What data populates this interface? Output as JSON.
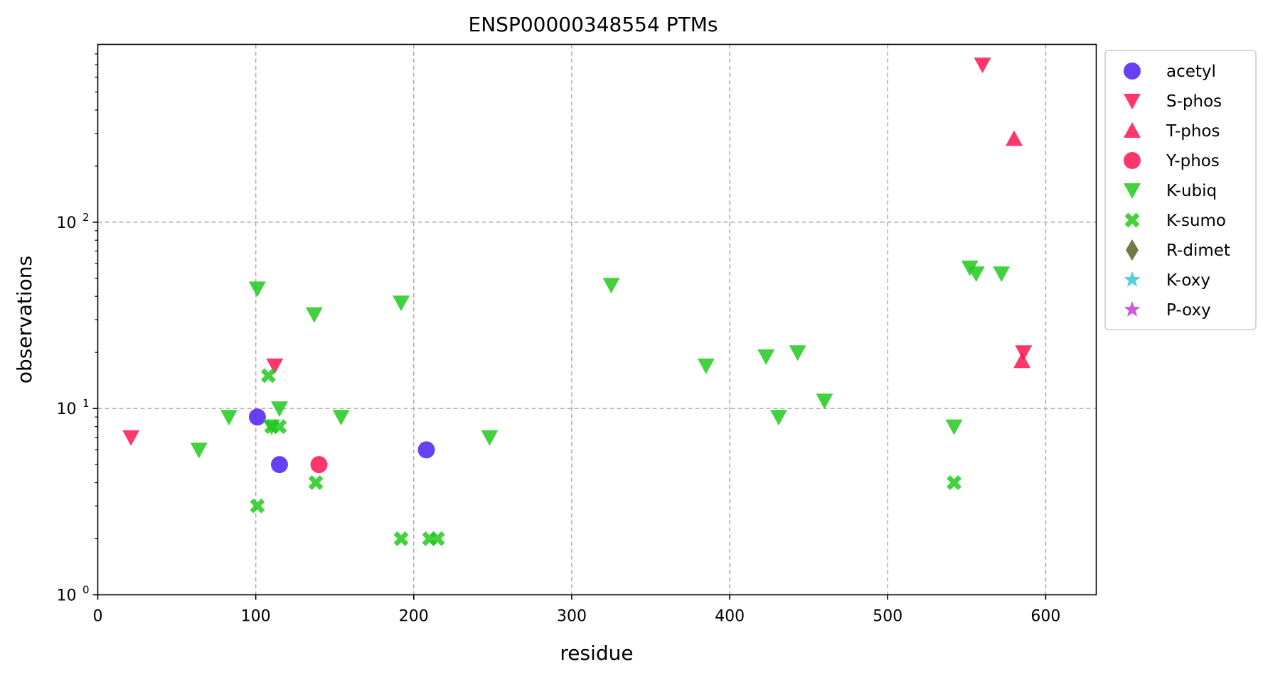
{
  "chart_data": {
    "type": "scatter",
    "title": "ENSP00000348554 PTMs",
    "xlabel": "residue",
    "ylabel": "observations",
    "xlim": [
      0,
      632
    ],
    "ylim": [
      1,
      900
    ],
    "yscale": "log",
    "grid": true,
    "legend_position": "outside-right",
    "x_ticks": [
      {
        "value": 0,
        "label": "0"
      },
      {
        "value": 100,
        "label": "100"
      },
      {
        "value": 200,
        "label": "200"
      },
      {
        "value": 300,
        "label": "300"
      },
      {
        "value": 400,
        "label": "400"
      },
      {
        "value": 500,
        "label": "500"
      },
      {
        "value": 600,
        "label": "600"
      }
    ],
    "y_ticks": [
      {
        "value": 1,
        "base": "10",
        "exp": "0"
      },
      {
        "value": 10,
        "base": "10",
        "exp": "1"
      },
      {
        "value": 100,
        "base": "10",
        "exp": "2"
      }
    ],
    "series": [
      {
        "name": "acetyl",
        "marker": "circle",
        "color": "#4c1ff5",
        "points": [
          [
            101,
            9
          ],
          [
            115,
            5
          ],
          [
            208,
            6
          ]
        ]
      },
      {
        "name": "S-phos",
        "marker": "triangle-down",
        "color": "#fb1551",
        "points": [
          [
            21,
            7
          ],
          [
            112,
            17
          ],
          [
            560,
            700
          ],
          [
            586,
            20
          ]
        ]
      },
      {
        "name": "T-phos",
        "marker": "triangle-up",
        "color": "#fb1551",
        "points": [
          [
            580,
            280
          ],
          [
            585,
            18
          ]
        ]
      },
      {
        "name": "Y-phos",
        "marker": "circle",
        "color": "#fb1551",
        "points": [
          [
            140,
            5
          ]
        ]
      },
      {
        "name": "K-ubiq",
        "marker": "triangle-down",
        "color": "#22c91f",
        "points": [
          [
            64,
            6
          ],
          [
            83,
            9
          ],
          [
            101,
            44
          ],
          [
            110,
            8
          ],
          [
            115,
            10
          ],
          [
            137,
            32
          ],
          [
            154,
            9
          ],
          [
            192,
            37
          ],
          [
            248,
            7
          ],
          [
            325,
            46
          ],
          [
            385,
            17
          ],
          [
            423,
            19
          ],
          [
            431,
            9
          ],
          [
            443,
            20
          ],
          [
            460,
            11
          ],
          [
            542,
            8
          ],
          [
            552,
            57
          ],
          [
            556,
            53
          ],
          [
            572,
            53
          ]
        ]
      },
      {
        "name": "K-sumo",
        "marker": "x-thick",
        "color": "#22c91f",
        "points": [
          [
            101,
            3
          ],
          [
            108,
            15
          ],
          [
            110,
            8
          ],
          [
            115,
            8
          ],
          [
            138,
            4
          ],
          [
            192,
            2
          ],
          [
            210,
            2
          ],
          [
            215,
            2
          ],
          [
            542,
            4
          ]
        ]
      },
      {
        "name": "R-dimet",
        "marker": "diamond",
        "color": "#5c6225",
        "points": []
      },
      {
        "name": "K-oxy",
        "marker": "star",
        "color": "#2ec9d3",
        "points": []
      },
      {
        "name": "P-oxy",
        "marker": "star",
        "color": "#c63ad6",
        "points": []
      }
    ]
  }
}
